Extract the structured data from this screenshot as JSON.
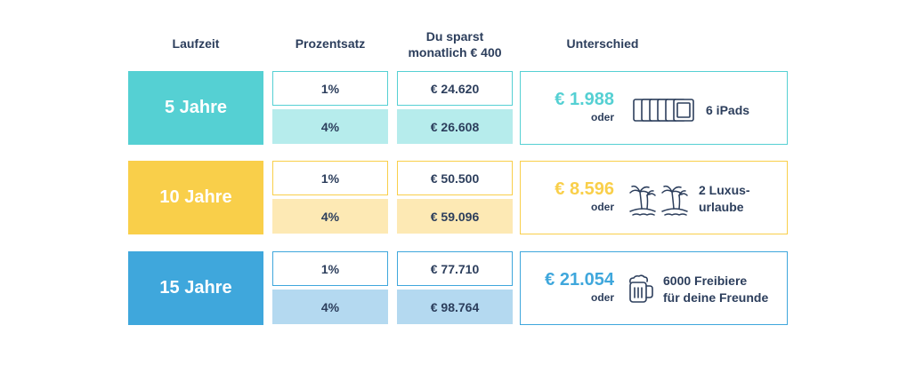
{
  "headers": {
    "laufzeit": "Laufzeit",
    "prozentsatz": "Prozentsatz",
    "sparst_line1": "Du sparst",
    "sparst_line2": "monatlich € 400",
    "unterschied": "Unterschied"
  },
  "rows": [
    {
      "label": "5 Jahre",
      "rate_low": "1%",
      "rate_high": "4%",
      "saved_low": "€ 24.620",
      "saved_high": "€ 26.608",
      "difference": "€ 1.988",
      "oder": "oder",
      "compare_line1": "6 iPads",
      "compare_line2": "",
      "icon": "ipads-icon",
      "color": "#55d0d3",
      "light_color": "#b6ecec"
    },
    {
      "label": "10 Jahre",
      "rate_low": "1%",
      "rate_high": "4%",
      "saved_low": "€ 50.500",
      "saved_high": "€ 59.096",
      "difference": "€ 8.596",
      "oder": "oder",
      "compare_line1": "2 Luxus-",
      "compare_line2": "urlaube",
      "icon": "palm-island-icon",
      "color": "#f9cf4a",
      "light_color": "#fde9b4"
    },
    {
      "label": "15 Jahre",
      "rate_low": "1%",
      "rate_high": "4%",
      "saved_low": "€ 77.710",
      "saved_high": "€ 98.764",
      "difference": "€ 21.054",
      "oder": "oder",
      "compare_line1": "6000 Freibiere",
      "compare_line2": "für deine Freunde",
      "icon": "beer-mug-icon",
      "color": "#3fa7dc",
      "light_color": "#b4d9f0"
    }
  ]
}
